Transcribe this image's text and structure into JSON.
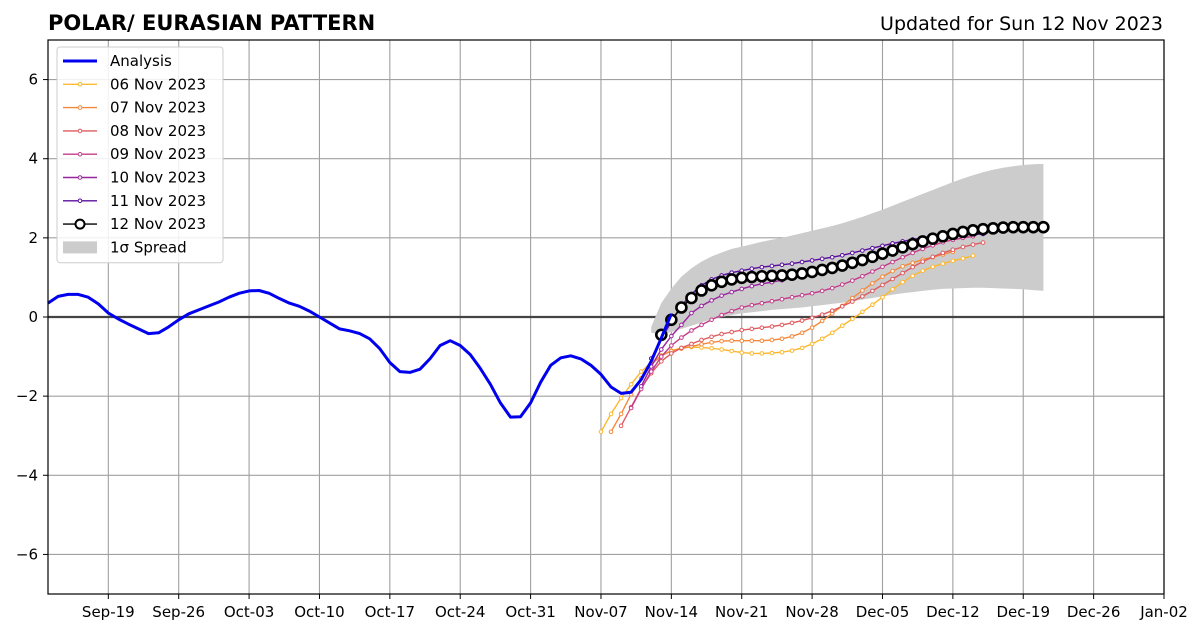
{
  "chart_data": {
    "type": "line",
    "title": "POLAR/ EURASIAN  PATTERN",
    "subtitle": "Updated for Sun 12 Nov 2023",
    "xlabel": "",
    "ylabel": "",
    "xlim": [
      "2023-09-13",
      "2024-01-02"
    ],
    "ylim": [
      -7,
      7
    ],
    "x_ticks": [
      "2023-09-19",
      "2023-09-26",
      "2023-10-03",
      "2023-10-10",
      "2023-10-17",
      "2023-10-24",
      "2023-10-31",
      "2023-11-07",
      "2023-11-14",
      "2023-11-21",
      "2023-11-28",
      "2023-12-05",
      "2023-12-12",
      "2023-12-19",
      "2023-12-26",
      "2024-01-02"
    ],
    "x_tick_labels": [
      "Sep-19",
      "Sep-26",
      "Oct-03",
      "Oct-10",
      "Oct-17",
      "Oct-24",
      "Oct-31",
      "Nov-07",
      "Nov-14",
      "Nov-21",
      "Nov-28",
      "Dec-05",
      "Dec-12",
      "Dec-19",
      "Dec-26",
      "Jan-02"
    ],
    "y_ticks": [
      -6,
      -4,
      -2,
      0,
      2,
      4,
      6
    ],
    "y_tick_labels": [
      "−6",
      "−4",
      "−2",
      "0",
      "2",
      "4",
      "6"
    ],
    "grid": true,
    "legend_position": "top-left",
    "zero_line": 0,
    "analysis": {
      "name": "Analysis",
      "color": "#0000ee",
      "start": "2023-09-13",
      "step_days": 1,
      "y": [
        0.35,
        0.52,
        0.57,
        0.57,
        0.5,
        0.33,
        0.1,
        -0.05,
        -0.18,
        -0.3,
        -0.42,
        -0.4,
        -0.25,
        -0.07,
        0.08,
        0.18,
        0.28,
        0.38,
        0.5,
        0.6,
        0.66,
        0.67,
        0.6,
        0.47,
        0.35,
        0.27,
        0.15,
        0.0,
        -0.15,
        -0.3,
        -0.35,
        -0.42,
        -0.55,
        -0.8,
        -1.15,
        -1.38,
        -1.4,
        -1.32,
        -1.05,
        -0.72,
        -0.6,
        -0.72,
        -0.95,
        -1.3,
        -1.7,
        -2.17,
        -2.53,
        -2.52,
        -2.17,
        -1.65,
        -1.22,
        -1.03,
        -0.98,
        -1.06,
        -1.22,
        -1.45,
        -1.77,
        -1.93,
        -1.9,
        -1.58,
        -1.12,
        -0.53,
        0.08
      ]
    },
    "spread": {
      "name": "1σ Spread",
      "color": "#cccccc",
      "start": "2023-11-12",
      "step_days": 1,
      "upper": [
        -0.25,
        0.35,
        0.72,
        1.02,
        1.23,
        1.4,
        1.53,
        1.63,
        1.72,
        1.78,
        1.84,
        1.9,
        1.95,
        2.0,
        2.06,
        2.12,
        2.18,
        2.24,
        2.3,
        2.37,
        2.45,
        2.53,
        2.62,
        2.71,
        2.81,
        2.91,
        3.01,
        3.11,
        3.21,
        3.31,
        3.41,
        3.5,
        3.58,
        3.66,
        3.72,
        3.77,
        3.81,
        3.84,
        3.86,
        3.87
      ],
      "lower": [
        -0.4,
        -0.44,
        -0.38,
        -0.3,
        -0.22,
        -0.14,
        -0.06,
        0.0,
        0.05,
        0.09,
        0.12,
        0.15,
        0.18,
        0.2,
        0.22,
        0.24,
        0.27,
        0.3,
        0.33,
        0.36,
        0.4,
        0.44,
        0.48,
        0.52,
        0.56,
        0.6,
        0.63,
        0.66,
        0.69,
        0.71,
        0.72,
        0.73,
        0.74,
        0.74,
        0.73,
        0.72,
        0.71,
        0.7,
        0.68,
        0.66
      ]
    },
    "series": [
      {
        "name": "06 Nov 2023",
        "color": "#fcb82e",
        "start": "2023-11-07",
        "step_days": 1,
        "y": [
          -2.9,
          -2.45,
          -2.05,
          -1.7,
          -1.38,
          -1.15,
          -0.97,
          -0.85,
          -0.78,
          -0.76,
          -0.77,
          -0.79,
          -0.82,
          -0.86,
          -0.9,
          -0.92,
          -0.92,
          -0.91,
          -0.89,
          -0.85,
          -0.78,
          -0.68,
          -0.55,
          -0.4,
          -0.22,
          -0.05,
          0.13,
          0.31,
          0.5,
          0.7,
          0.88,
          1.04,
          1.17,
          1.27,
          1.35,
          1.42,
          1.48,
          1.55
        ]
      },
      {
        "name": "07 Nov 2023",
        "color": "#f4893c",
        "start": "2023-11-08",
        "step_days": 1,
        "y": [
          -2.9,
          -2.45,
          -1.95,
          -1.55,
          -1.2,
          -0.98,
          -0.86,
          -0.8,
          -0.74,
          -0.69,
          -0.64,
          -0.61,
          -0.6,
          -0.6,
          -0.6,
          -0.6,
          -0.58,
          -0.55,
          -0.49,
          -0.4,
          -0.27,
          -0.1,
          0.09,
          0.28,
          0.48,
          0.67,
          0.85,
          1.02,
          1.16,
          1.28,
          1.37,
          1.45,
          1.51,
          1.58,
          1.65
        ]
      },
      {
        "name": "08 Nov 2023",
        "color": "#df5b5f",
        "start": "2023-11-09",
        "step_days": 1,
        "y": [
          -2.75,
          -2.28,
          -1.8,
          -1.42,
          -1.12,
          -0.92,
          -0.78,
          -0.68,
          -0.58,
          -0.5,
          -0.43,
          -0.38,
          -0.33,
          -0.3,
          -0.27,
          -0.24,
          -0.2,
          -0.15,
          -0.09,
          -0.02,
          0.06,
          0.16,
          0.27,
          0.39,
          0.52,
          0.66,
          0.81,
          0.96,
          1.11,
          1.26,
          1.4,
          1.52,
          1.62,
          1.7,
          1.77,
          1.83,
          1.88
        ]
      },
      {
        "name": "09 Nov 2023",
        "color": "#c43c8a",
        "start": "2023-11-10",
        "step_days": 1,
        "y": [
          -2.3,
          -1.82,
          -1.38,
          -1.0,
          -0.72,
          -0.52,
          -0.34,
          -0.2,
          -0.07,
          0.05,
          0.15,
          0.24,
          0.3,
          0.35,
          0.4,
          0.45,
          0.5,
          0.55,
          0.6,
          0.66,
          0.73,
          0.82,
          0.92,
          1.03,
          1.15,
          1.27,
          1.39,
          1.51,
          1.62,
          1.72,
          1.81,
          1.89,
          1.95,
          2.0,
          2.04
        ]
      },
      {
        "name": "10 Nov 2023",
        "color": "#98259e",
        "start": "2023-11-11",
        "step_days": 1,
        "y": [
          -1.75,
          -1.25,
          -0.82,
          -0.48,
          -0.2,
          0.1,
          0.28,
          0.42,
          0.54,
          0.63,
          0.71,
          0.78,
          0.84,
          0.88,
          0.93,
          0.98,
          1.03,
          1.08,
          1.13,
          1.19,
          1.26,
          1.34,
          1.42,
          1.5,
          1.59,
          1.68,
          1.77,
          1.85,
          1.93,
          1.99,
          2.03,
          2.06,
          2.08,
          2.09,
          2.1
        ]
      },
      {
        "name": "11 Nov 2023",
        "color": "#5a0da0",
        "start": "2023-11-12",
        "step_days": 1,
        "y": [
          -1.05,
          -0.55,
          -0.12,
          0.28,
          0.58,
          0.8,
          0.95,
          1.05,
          1.12,
          1.17,
          1.22,
          1.26,
          1.29,
          1.32,
          1.35,
          1.39,
          1.43,
          1.47,
          1.51,
          1.56,
          1.62,
          1.68,
          1.74,
          1.8,
          1.86,
          1.91,
          1.96,
          2.0,
          2.03,
          2.05,
          2.07,
          2.08,
          2.09,
          2.1
        ]
      },
      {
        "name": "12 Nov 2023",
        "color": "#000000",
        "start": "2023-11-13",
        "step_days": 1,
        "y": [
          -0.45,
          -0.07,
          0.24,
          0.48,
          0.67,
          0.8,
          0.89,
          0.95,
          0.99,
          1.01,
          1.03,
          1.04,
          1.05,
          1.07,
          1.1,
          1.14,
          1.19,
          1.24,
          1.3,
          1.37,
          1.44,
          1.52,
          1.6,
          1.68,
          1.76,
          1.84,
          1.91,
          1.98,
          2.04,
          2.1,
          2.15,
          2.19,
          2.22,
          2.24,
          2.26,
          2.27,
          2.27,
          2.27,
          2.27
        ]
      }
    ]
  }
}
